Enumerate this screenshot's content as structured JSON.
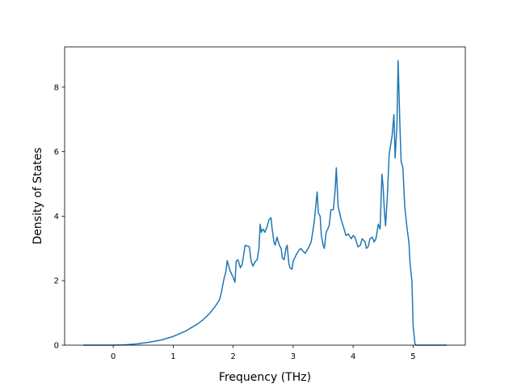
{
  "chart_data": {
    "type": "line",
    "title": "",
    "xlabel": "Frequency (THz)",
    "ylabel": "Density of States",
    "xlim": [
      -0.81,
      5.87
    ],
    "ylim": [
      0,
      9.25
    ],
    "x_ticks": [
      0,
      1,
      2,
      3,
      4,
      5
    ],
    "y_ticks": [
      0,
      2,
      4,
      6,
      8
    ],
    "grid": false,
    "legend": "none",
    "series": [
      {
        "color": "#1f77b4",
        "points": [
          [
            -0.5,
            0
          ],
          [
            0,
            0
          ],
          [
            0.2,
            0.01
          ],
          [
            0.4,
            0.04
          ],
          [
            0.6,
            0.09
          ],
          [
            0.8,
            0.16
          ],
          [
            1.0,
            0.27
          ],
          [
            1.2,
            0.43
          ],
          [
            1.4,
            0.65
          ],
          [
            1.5,
            0.79
          ],
          [
            1.6,
            0.97
          ],
          [
            1.7,
            1.2
          ],
          [
            1.77,
            1.4
          ],
          [
            1.8,
            1.6
          ],
          [
            1.84,
            2.0
          ],
          [
            1.88,
            2.3
          ],
          [
            1.9,
            2.62
          ],
          [
            1.95,
            2.3
          ],
          [
            2.0,
            2.1
          ],
          [
            2.03,
            1.95
          ],
          [
            2.05,
            2.6
          ],
          [
            2.08,
            2.65
          ],
          [
            2.12,
            2.4
          ],
          [
            2.15,
            2.5
          ],
          [
            2.2,
            3.1
          ],
          [
            2.27,
            3.05
          ],
          [
            2.3,
            2.6
          ],
          [
            2.33,
            2.45
          ],
          [
            2.37,
            2.6
          ],
          [
            2.4,
            2.65
          ],
          [
            2.43,
            3.0
          ],
          [
            2.45,
            3.75
          ],
          [
            2.47,
            3.5
          ],
          [
            2.5,
            3.6
          ],
          [
            2.53,
            3.5
          ],
          [
            2.57,
            3.7
          ],
          [
            2.6,
            3.9
          ],
          [
            2.63,
            3.95
          ],
          [
            2.65,
            3.6
          ],
          [
            2.68,
            3.2
          ],
          [
            2.7,
            3.1
          ],
          [
            2.73,
            3.35
          ],
          [
            2.77,
            3.1
          ],
          [
            2.8,
            3.0
          ],
          [
            2.82,
            2.7
          ],
          [
            2.85,
            2.65
          ],
          [
            2.88,
            3.0
          ],
          [
            2.9,
            3.1
          ],
          [
            2.93,
            2.5
          ],
          [
            2.95,
            2.4
          ],
          [
            2.98,
            2.35
          ],
          [
            3.0,
            2.6
          ],
          [
            3.05,
            2.8
          ],
          [
            3.1,
            2.95
          ],
          [
            3.13,
            3.0
          ],
          [
            3.17,
            2.9
          ],
          [
            3.2,
            2.85
          ],
          [
            3.25,
            3.0
          ],
          [
            3.3,
            3.2
          ],
          [
            3.35,
            3.8
          ],
          [
            3.4,
            4.75
          ],
          [
            3.42,
            4.1
          ],
          [
            3.45,
            4.0
          ],
          [
            3.47,
            3.4
          ],
          [
            3.5,
            3.1
          ],
          [
            3.52,
            3.0
          ],
          [
            3.55,
            3.5
          ],
          [
            3.6,
            3.7
          ],
          [
            3.63,
            4.2
          ],
          [
            3.67,
            4.2
          ],
          [
            3.7,
            4.8
          ],
          [
            3.72,
            5.5
          ],
          [
            3.75,
            4.3
          ],
          [
            3.8,
            3.9
          ],
          [
            3.85,
            3.6
          ],
          [
            3.88,
            3.4
          ],
          [
            3.92,
            3.45
          ],
          [
            3.97,
            3.3
          ],
          [
            4.0,
            3.4
          ],
          [
            4.03,
            3.35
          ],
          [
            4.08,
            3.05
          ],
          [
            4.12,
            3.1
          ],
          [
            4.15,
            3.3
          ],
          [
            4.2,
            3.2
          ],
          [
            4.22,
            3.0
          ],
          [
            4.25,
            3.05
          ],
          [
            4.28,
            3.3
          ],
          [
            4.32,
            3.35
          ],
          [
            4.35,
            3.2
          ],
          [
            4.38,
            3.3
          ],
          [
            4.42,
            3.75
          ],
          [
            4.45,
            3.6
          ],
          [
            4.48,
            5.3
          ],
          [
            4.5,
            4.9
          ],
          [
            4.52,
            4.2
          ],
          [
            4.54,
            3.7
          ],
          [
            4.57,
            4.6
          ],
          [
            4.6,
            5.9
          ],
          [
            4.65,
            6.5
          ],
          [
            4.68,
            7.15
          ],
          [
            4.7,
            5.8
          ],
          [
            4.73,
            6.8
          ],
          [
            4.75,
            8.82
          ],
          [
            4.78,
            6.8
          ],
          [
            4.8,
            5.7
          ],
          [
            4.83,
            5.5
          ],
          [
            4.86,
            4.3
          ],
          [
            4.9,
            3.6
          ],
          [
            4.93,
            3.2
          ],
          [
            4.95,
            2.5
          ],
          [
            4.98,
            2.0
          ],
          [
            5.0,
            0.6
          ],
          [
            5.03,
            0.05
          ],
          [
            5.05,
            0
          ],
          [
            5.56,
            0
          ]
        ]
      }
    ]
  }
}
